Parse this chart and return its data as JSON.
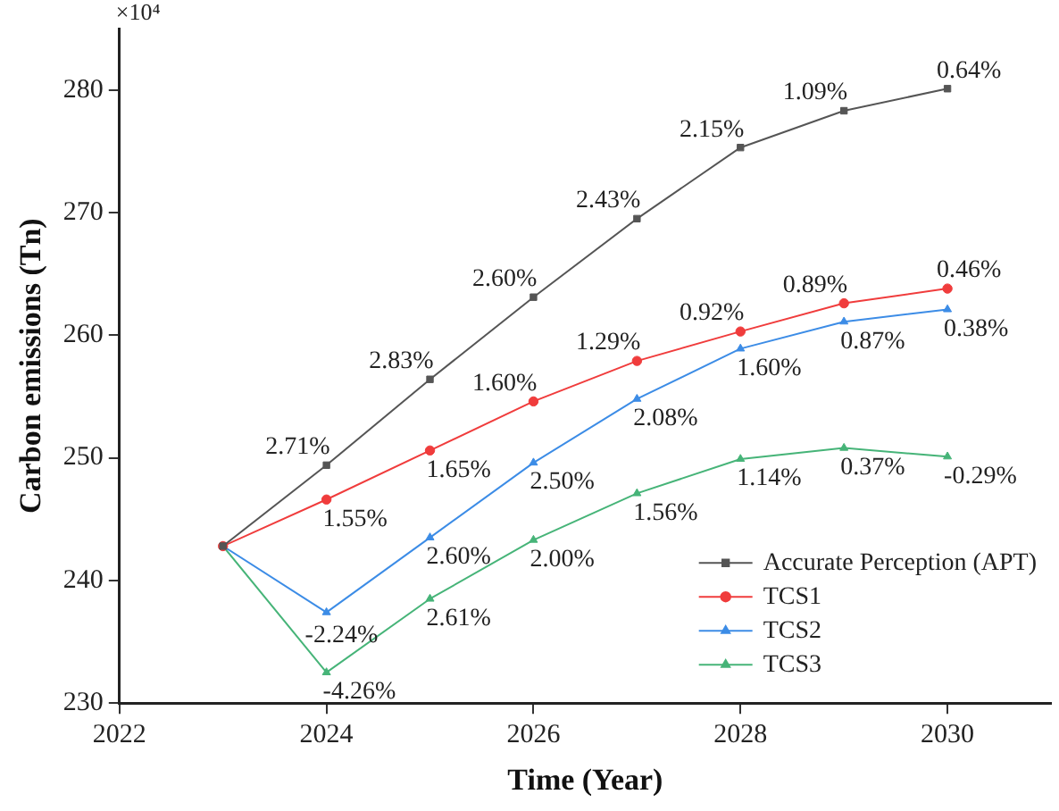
{
  "chart_data": {
    "type": "line",
    "xlabel": "Time (Year)",
    "ylabel": "Carbon emissions (Tn)",
    "x": [
      2023,
      2024,
      2025,
      2026,
      2027,
      2028,
      2029,
      2030
    ],
    "xlim": [
      2022,
      2031
    ],
    "xticks": [
      2022,
      2024,
      2026,
      2028,
      2030
    ],
    "ylim": [
      230,
      285
    ],
    "yticks": [
      230,
      240,
      250,
      260,
      270,
      280
    ],
    "grid": false,
    "legend": "bottom right",
    "line_style": "solid",
    "series": [
      {
        "name": "Accurate Perception (APT)",
        "color": "#555555",
        "marker": "square",
        "values": [
          242.8,
          249.4,
          256.4,
          263.1,
          269.5,
          275.3,
          278.3,
          280.1
        ]
      },
      {
        "name": "TCS1",
        "color": "#f03c3c",
        "marker": "circle",
        "values": [
          242.8,
          246.6,
          250.6,
          254.6,
          257.9,
          260.3,
          262.6,
          263.8
        ]
      },
      {
        "name": "TCS2",
        "color": "#3c8ce6",
        "marker": "triangle",
        "values": [
          242.8,
          237.4,
          243.5,
          249.6,
          254.8,
          258.9,
          261.1,
          262.1
        ]
      },
      {
        "name": "TCS3",
        "color": "#46b478",
        "marker": "triangle",
        "values": [
          242.8,
          232.5,
          238.5,
          243.3,
          247.1,
          249.9,
          250.8,
          250.1
        ]
      }
    ],
    "annotations": [
      "×10⁴",
      {
        "text": "2.71%",
        "x": 2024,
        "y": 249.4
      },
      {
        "text": "2.83%",
        "x": 2025,
        "y": 256.4
      },
      {
        "text": "2.60%",
        "x": 2026,
        "y": 263.1
      },
      {
        "text": "2.43%",
        "x": 2027,
        "y": 269.5
      },
      {
        "text": "2.15%",
        "x": 2028,
        "y": 275.3
      },
      {
        "text": "1.09%",
        "x": 2029,
        "y": 278.3
      },
      {
        "text": "0.64%",
        "x": 2030,
        "y": 280.1
      },
      {
        "text": "1.55%",
        "x": 2024,
        "y": 246.6
      },
      {
        "text": "1.65%",
        "x": 2025,
        "y": 250.6
      },
      {
        "text": "1.60%",
        "x": 2026,
        "y": 254.6
      },
      {
        "text": "1.29%",
        "x": 2027,
        "y": 257.9
      },
      {
        "text": "0.92%",
        "x": 2028,
        "y": 260.3
      },
      {
        "text": "0.89%",
        "x": 2029,
        "y": 262.6
      },
      {
        "text": "0.46%",
        "x": 2030,
        "y": 263.8
      },
      {
        "text": "-2.24%",
        "x": 2024,
        "y": 237.4
      },
      {
        "text": "2.60%",
        "x": 2025,
        "y": 243.5
      },
      {
        "text": "2.50%",
        "x": 2026,
        "y": 249.6
      },
      {
        "text": "2.08%",
        "x": 2027,
        "y": 254.8
      },
      {
        "text": "1.60%",
        "x": 2028,
        "y": 258.9
      },
      {
        "text": "0.87%",
        "x": 2029,
        "y": 261.1
      },
      {
        "text": "0.38%",
        "x": 2030,
        "y": 262.1
      },
      {
        "text": "-4.26%",
        "x": 2024,
        "y": 232.5
      },
      {
        "text": "2.61%",
        "x": 2025,
        "y": 238.5
      },
      {
        "text": "2.00%",
        "x": 2026,
        "y": 243.3
      },
      {
        "text": "1.56%",
        "x": 2027,
        "y": 247.1
      },
      {
        "text": "1.14%",
        "x": 2028,
        "y": 249.9
      },
      {
        "text": "0.37%",
        "x": 2029,
        "y": 250.8
      },
      {
        "text": "-0.29%",
        "x": 2030,
        "y": 250.1
      }
    ]
  }
}
